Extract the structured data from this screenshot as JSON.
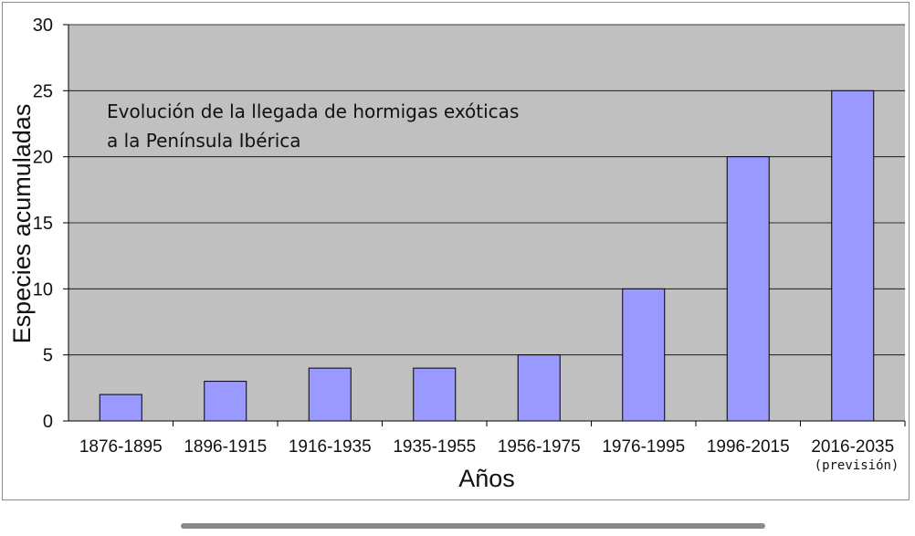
{
  "chart_data": {
    "type": "bar",
    "title_lines": [
      "Evolución de la llegada de hormigas exóticas",
      "a la Península Ibérica"
    ],
    "xlabel": "Años",
    "ylabel": "Especies acumuladas",
    "categories": [
      "1876-1895",
      "1896-1915",
      "1916-1935",
      "1935-1955",
      "1956-1975",
      "1976-1995",
      "1996-2015",
      "2016-2035"
    ],
    "annotations": [
      {
        "category": "2016-2035",
        "text": "(previsión)"
      }
    ],
    "series": [
      {
        "values": [
          2,
          3,
          4,
          4,
          5,
          10,
          20,
          25
        ]
      }
    ],
    "ylim": [
      0,
      30
    ],
    "yticks": [
      0,
      5,
      10,
      15,
      20,
      25,
      30
    ],
    "grid": true,
    "colors": {
      "plot_background": "#c0c0c0",
      "bar_fill": "#9999ff",
      "bar_stroke": "#000000",
      "grid": "#000000"
    }
  }
}
